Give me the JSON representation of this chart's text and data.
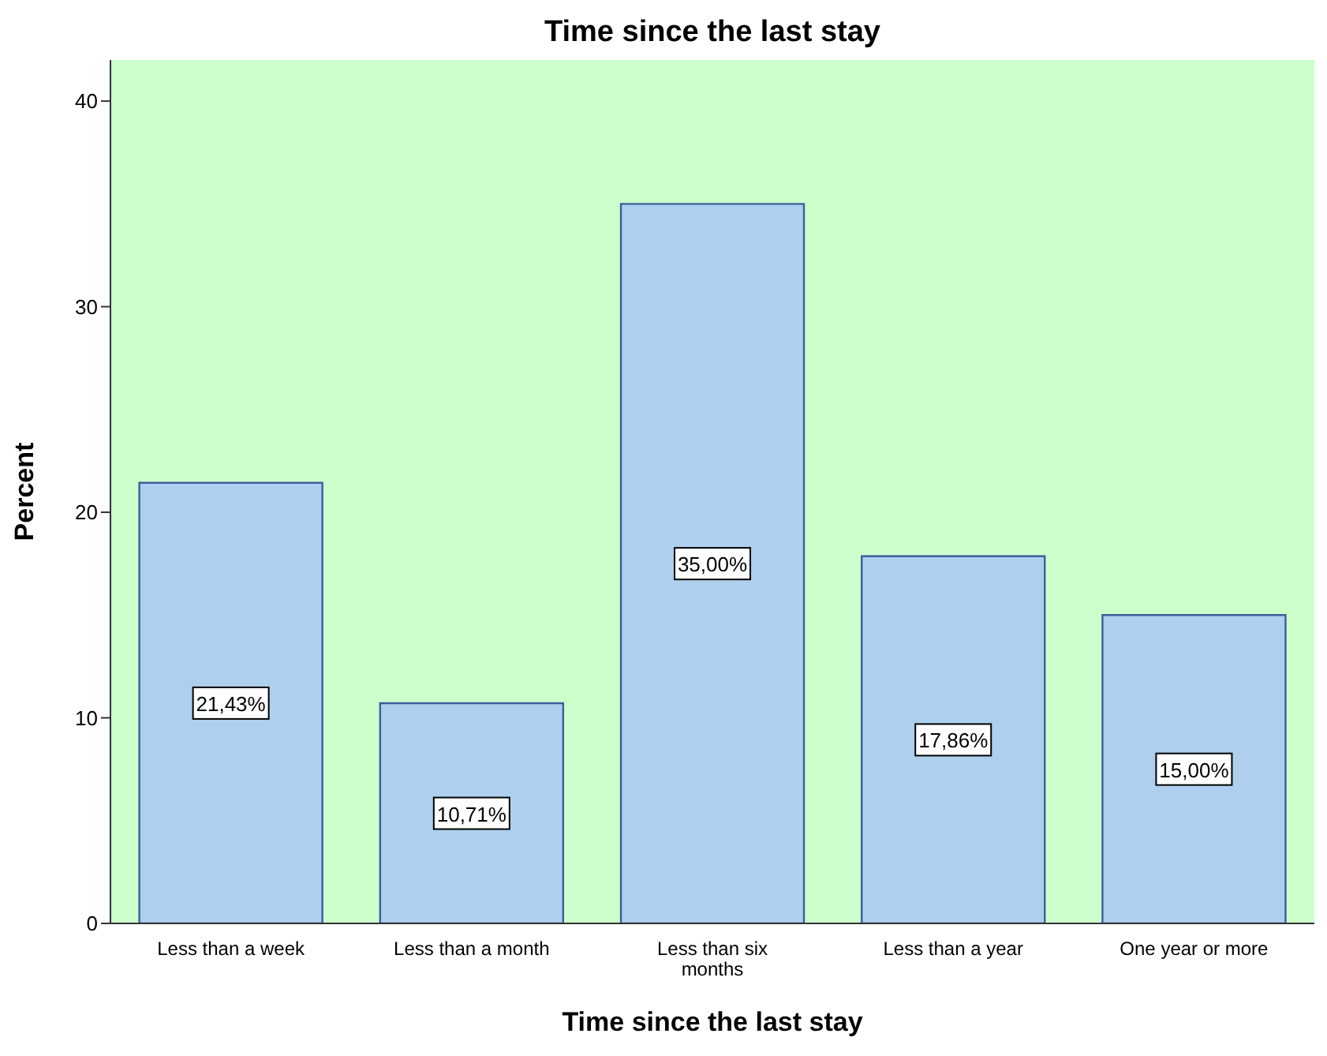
{
  "chart_data": {
    "type": "bar",
    "title": "Time since the last stay",
    "xlabel": "Time since the last stay",
    "ylabel": "Percent",
    "categories": [
      "Less than a week",
      "Less than a month",
      "Less than six months",
      "Less than a year",
      "One year or more"
    ],
    "values": [
      21.43,
      10.71,
      35.0,
      17.86,
      15.0
    ],
    "value_labels": [
      "21,43%",
      "10,71%",
      "35,00%",
      "17,86%",
      "15,00%"
    ],
    "color": "#aecfee",
    "ylim": [
      0,
      42
    ],
    "yticks": [
      0,
      10,
      20,
      30,
      40
    ],
    "grid": false
  }
}
